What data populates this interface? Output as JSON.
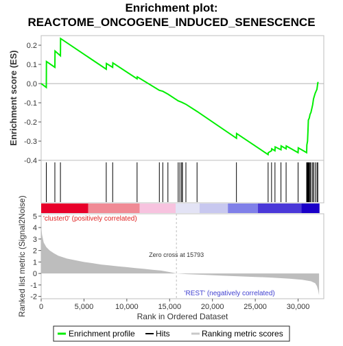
{
  "chart_data": {
    "type": "line",
    "title_line1": "Enrichment plot:",
    "title_line2": "REACTOME_ONCOGENE_INDUCED_SENESCENCE",
    "es_panel": {
      "ylabel": "Enrichment score (ES)",
      "ylim": [
        -0.4,
        0.25
      ],
      "yticks": [
        0.2,
        0.1,
        0.0,
        -0.1,
        -0.2,
        -0.3,
        -0.4
      ],
      "ytick_labels": [
        "0.2",
        "0.1",
        "0.0",
        "-0.1",
        "-0.2",
        "-0.3",
        "-0.4"
      ],
      "series": [
        {
          "name": "Enrichment profile",
          "color": "#00ee00",
          "points": [
            [
              0,
              0.0
            ],
            [
              600,
              -0.02
            ],
            [
              620,
              0.115
            ],
            [
              1600,
              0.085
            ],
            [
              1620,
              0.17
            ],
            [
              2250,
              0.145
            ],
            [
              2270,
              0.235
            ],
            [
              7600,
              0.075
            ],
            [
              7620,
              0.105
            ],
            [
              8350,
              0.085
            ],
            [
              8370,
              0.108
            ],
            [
              11200,
              0.025
            ],
            [
              11220,
              0.035
            ],
            [
              13800,
              -0.035
            ],
            [
              14200,
              -0.04
            ],
            [
              14800,
              -0.055
            ],
            [
              16000,
              -0.09
            ],
            [
              16400,
              -0.097
            ],
            [
              16900,
              -0.108
            ],
            [
              18200,
              -0.145
            ],
            [
              22800,
              -0.285
            ],
            [
              22820,
              -0.26
            ],
            [
              26500,
              -0.37
            ],
            [
              26520,
              -0.36
            ],
            [
              26900,
              -0.35
            ],
            [
              26920,
              -0.34
            ],
            [
              27300,
              -0.35
            ],
            [
              27320,
              -0.33
            ],
            [
              28000,
              -0.345
            ],
            [
              28020,
              -0.325
            ],
            [
              28600,
              -0.34
            ],
            [
              28620,
              -0.325
            ],
            [
              30000,
              -0.36
            ],
            [
              30020,
              -0.335
            ],
            [
              31000,
              -0.36
            ],
            [
              31020,
              -0.32
            ],
            [
              31100,
              -0.3
            ],
            [
              31150,
              -0.25
            ],
            [
              31200,
              -0.19
            ],
            [
              31300,
              -0.18
            ],
            [
              31400,
              -0.16
            ],
            [
              31500,
              -0.15
            ],
            [
              31700,
              -0.11
            ],
            [
              31800,
              -0.08
            ],
            [
              32000,
              -0.05
            ],
            [
              32200,
              -0.03
            ],
            [
              32300,
              0.005
            ],
            [
              32400,
              0.005
            ]
          ]
        }
      ]
    },
    "hits": [
      600,
      1600,
      2250,
      7600,
      8350,
      11200,
      13800,
      14200,
      14800,
      16000,
      16200,
      16400,
      16500,
      16900,
      18200,
      22800,
      26500,
      26900,
      27300,
      28000,
      28600,
      30000,
      31000,
      31050,
      31100,
      31150,
      31200,
      31250,
      31300,
      31400,
      31500,
      31700,
      31800,
      32000,
      32200,
      32300
    ],
    "ranking_bar": {
      "segments": [
        {
          "from": 0,
          "to": 5500,
          "color": "#e8002a"
        },
        {
          "from": 5500,
          "to": 11500,
          "color": "#f08a95"
        },
        {
          "from": 11500,
          "to": 15700,
          "color": "#f7c3df"
        },
        {
          "from": 15700,
          "to": 18500,
          "color": "#e3e3f5"
        },
        {
          "from": 18500,
          "to": 21800,
          "color": "#c8c8ef"
        },
        {
          "from": 21800,
          "to": 25300,
          "color": "#8080e8"
        },
        {
          "from": 25300,
          "to": 30400,
          "color": "#4a38d8"
        },
        {
          "from": 30400,
          "to": 32500,
          "color": "#1a00c8"
        }
      ]
    },
    "metric_panel": {
      "ylabel": "Ranked list metric (Signal2Noise)",
      "ylim": [
        -2.2,
        5.2
      ],
      "yticks": [
        5,
        4,
        3,
        2,
        1,
        0,
        -1,
        -2
      ],
      "ytick_labels": [
        "5",
        "4",
        "3",
        "2",
        "1",
        "0",
        "-1",
        "-2"
      ],
      "profile": [
        [
          0,
          4.2
        ],
        [
          100,
          3.4
        ],
        [
          300,
          2.7
        ],
        [
          600,
          2.3
        ],
        [
          1000,
          2.0
        ],
        [
          1500,
          1.75
        ],
        [
          2000,
          1.55
        ],
        [
          3000,
          1.3
        ],
        [
          4000,
          1.15
        ],
        [
          5000,
          1.0
        ],
        [
          6000,
          0.9
        ],
        [
          7000,
          0.78
        ],
        [
          8000,
          0.7
        ],
        [
          9000,
          0.62
        ],
        [
          10000,
          0.55
        ],
        [
          11000,
          0.47
        ],
        [
          12000,
          0.4
        ],
        [
          13000,
          0.32
        ],
        [
          14000,
          0.25
        ],
        [
          15000,
          0.12
        ],
        [
          15793,
          0.0
        ],
        [
          17000,
          -0.06
        ],
        [
          19000,
          -0.12
        ],
        [
          21000,
          -0.18
        ],
        [
          23000,
          -0.24
        ],
        [
          25000,
          -0.3
        ],
        [
          27000,
          -0.36
        ],
        [
          29000,
          -0.45
        ],
        [
          30500,
          -0.55
        ],
        [
          31500,
          -0.68
        ],
        [
          32000,
          -0.85
        ],
        [
          32200,
          -1.1
        ],
        [
          32350,
          -1.5
        ],
        [
          32450,
          -1.9
        ]
      ],
      "zero_cross_x": 15793,
      "zero_cross_label": "Zero cross at 15793",
      "pos_label": "'cluster0' (positively correlated)",
      "neg_label": "'REST' (negatively correlated)"
    },
    "xaxis": {
      "xlabel": "Rank in Ordered Dataset",
      "xlim": [
        0,
        33000
      ],
      "xticks": [
        0,
        5000,
        10000,
        15000,
        20000,
        25000,
        30000
      ],
      "xtick_labels": [
        "0",
        "5,000",
        "10,000",
        "15,000",
        "20,000",
        "25,000",
        "30,000"
      ]
    },
    "legend": {
      "placement": "bottom",
      "items": [
        {
          "label": "Enrichment profile",
          "color": "#00ee00",
          "kind": "profile"
        },
        {
          "label": "Hits",
          "color": "#000000",
          "kind": "hits"
        },
        {
          "label": "Ranking metric scores",
          "color": "#c8c8c8",
          "kind": "metric"
        }
      ]
    }
  }
}
